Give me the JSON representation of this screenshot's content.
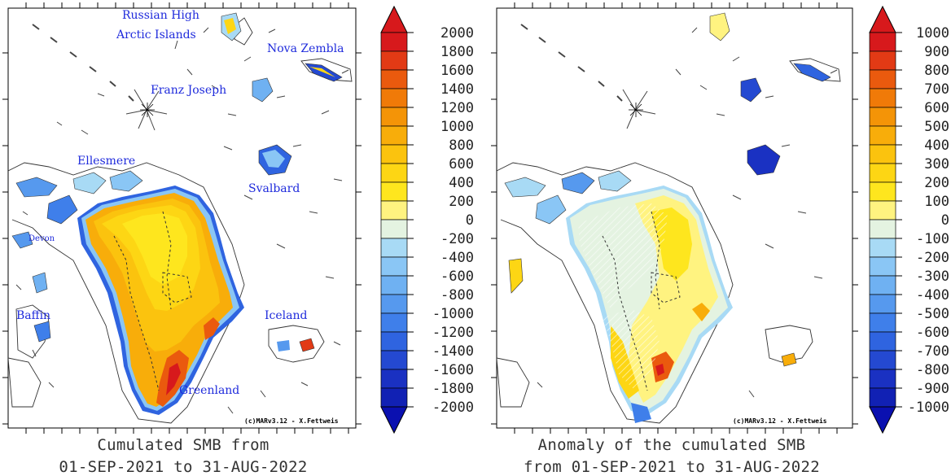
{
  "panels": [
    {
      "caption_line1": "Cumulated SMB from",
      "caption_line2": "01-SEP-2021 to 31-AUG-2022",
      "credit": "(c)MARv3.12 - X.Fettweis",
      "labels": {
        "russian_high": "Russian High",
        "arctic_islands": "Arctic Islands",
        "nova_zembla": "Nova Zembla",
        "franz_joseph": "Franz Joseph",
        "ellesmere": "Ellesmere",
        "svalbard": "Svalbard",
        "devon": "Devon",
        "baffin": "Baffin",
        "iceland": "Iceland",
        "greenland": "Greenland"
      },
      "colorbar": {
        "ticks": [
          "2000",
          "1800",
          "1600",
          "1400",
          "1200",
          "1000",
          "800",
          "600",
          "400",
          "200",
          "0",
          "-200",
          "-400",
          "-600",
          "-800",
          "-1000",
          "-1200",
          "-1400",
          "-1600",
          "-1800",
          "-2000"
        ]
      }
    },
    {
      "caption_line1": "Anomaly of the cumulated SMB",
      "caption_line2": "from 01-SEP-2021 to 31-AUG-2022",
      "credit": "(c)MARv3.12 - X.Fettweis",
      "colorbar": {
        "ticks": [
          "1000",
          "900",
          "800",
          "700",
          "600",
          "500",
          "400",
          "300",
          "200",
          "100",
          "0",
          "-100",
          "-200",
          "-300",
          "-400",
          "-500",
          "-600",
          "-700",
          "-800",
          "-900",
          "-1000"
        ]
      }
    }
  ],
  "colorbar_colors": [
    "#d7191c",
    "#e23a15",
    "#ea5a0e",
    "#f07a08",
    "#f49407",
    "#f8ad0a",
    "#fbc30e",
    "#fdd614",
    "#fee61e",
    "#fff380",
    "#e4f3e1",
    "#a8daf5",
    "#8ac6f5",
    "#6fb1f2",
    "#5699ee",
    "#3f7fea",
    "#2f64e0",
    "#2449d1",
    "#1a31c2",
    "#1121b4"
  ],
  "colorbar_colors_right": [
    "#d7191c",
    "#e23a15",
    "#ea5a0e",
    "#f07a08",
    "#f49407",
    "#f8ad0a",
    "#fbc30e",
    "#fdd614",
    "#fee61e",
    "#fff380",
    "#e4f3e1",
    "#a8daf5",
    "#8ac6f5",
    "#6fb1f2",
    "#5699ee",
    "#3f7fea",
    "#2f64e0",
    "#2449d1",
    "#1a31c2",
    "#1121b4"
  ]
}
